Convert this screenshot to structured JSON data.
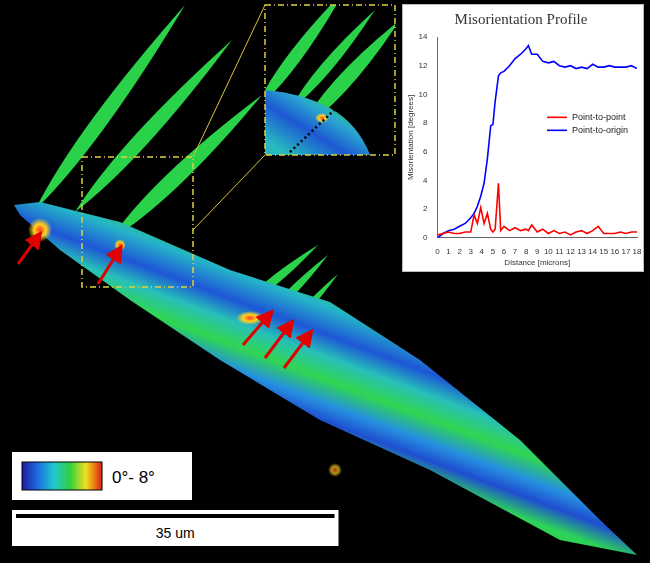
{
  "figure": {
    "color_bar": {
      "range": [
        0,
        8
      ],
      "label": "0°- 8°"
    },
    "scale_bar": {
      "length": 35,
      "label": "35 um"
    }
  },
  "chart_data": {
    "type": "line",
    "title": "Misorientation Profile",
    "x_label": "Distance [microns]",
    "y_label": "Misorientation [degrees]",
    "x": [
      0,
      0.5,
      1,
      1.5,
      2,
      2.5,
      3,
      3.3,
      3.6,
      3.9,
      4.2,
      4.5,
      4.8,
      5,
      5.2,
      5.5,
      5.7,
      6,
      6.5,
      7,
      7.5,
      8,
      8.2,
      8.5,
      9,
      9.5,
      10,
      10.5,
      11,
      11.5,
      12,
      12.5,
      13,
      13.5,
      14,
      14.5,
      15,
      15.5,
      16,
      16.5,
      17,
      17.5,
      18
    ],
    "xlim": [
      0,
      18
    ],
    "xticks": [
      0,
      1,
      2,
      3,
      4,
      5,
      6,
      7,
      8,
      9,
      10,
      11,
      12,
      13,
      14,
      15,
      16,
      17,
      18
    ],
    "ylim": [
      0,
      14
    ],
    "yticks": [
      0,
      2,
      4,
      6,
      8,
      10,
      12,
      14
    ],
    "grid": false,
    "legend": "right",
    "series": [
      {
        "name": "Point-to-point",
        "color": "#ff0000",
        "values": [
          0.2,
          0.3,
          0.4,
          0.3,
          0.3,
          0.4,
          0.4,
          1.6,
          1,
          2.1,
          1,
          1.7,
          0.6,
          0.4,
          0.6,
          3.8,
          0.5,
          0.8,
          0.5,
          0.7,
          0.5,
          0.6,
          0.5,
          0.9,
          0.4,
          0.6,
          0.3,
          0.5,
          0.3,
          0.4,
          0.2,
          0.4,
          0.5,
          0.3,
          0.5,
          0.8,
          0.3,
          0.3,
          0.3,
          0.4,
          0.3,
          0.4,
          0.4
        ]
      },
      {
        "name": "Point-to-origin",
        "color": "#0000ff",
        "values": [
          0,
          0.3,
          0.5,
          0.6,
          0.8,
          1,
          1.4,
          1.7,
          2.2,
          2.9,
          3.8,
          5.5,
          7.8,
          7.9,
          9.5,
          11.3,
          11.5,
          11.6,
          12,
          12.5,
          12.8,
          13.2,
          13.4,
          12.8,
          12.8,
          12.3,
          12.2,
          12.3,
          12,
          11.9,
          12,
          11.8,
          11.9,
          11.8,
          12.1,
          11.9,
          11.9,
          12,
          11.9,
          11.9,
          11.9,
          12,
          11.8
        ]
      }
    ]
  }
}
